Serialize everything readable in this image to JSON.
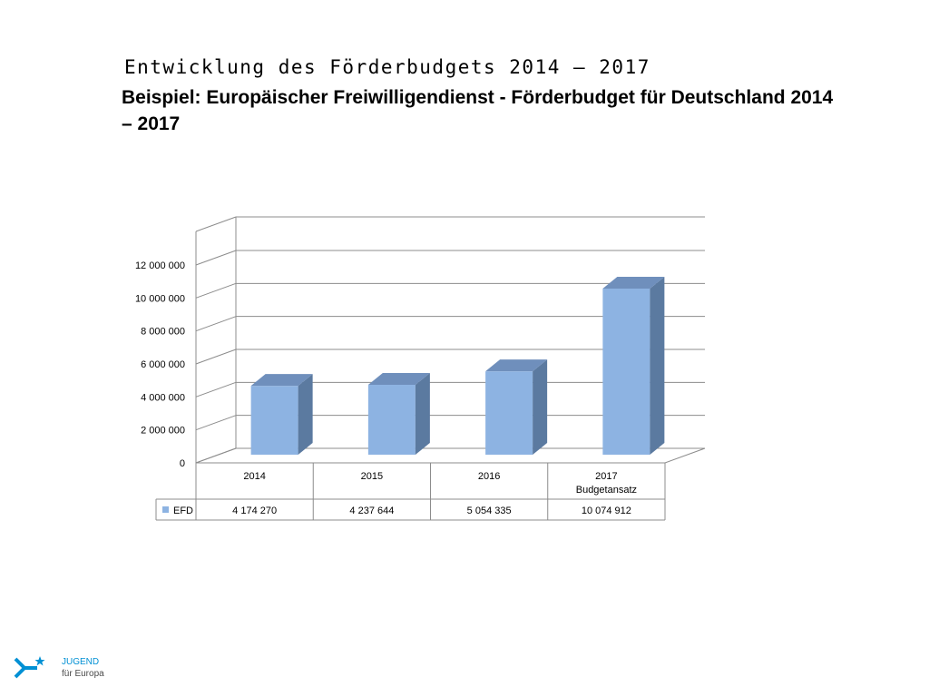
{
  "slide": {
    "title": "Entwicklung des Förderbudgets 2014 – 2017",
    "subtitle": "Beispiel: Europäischer Freiwilligendienst - Förderbudget für Deutschland 2014 – 2017"
  },
  "chart_data": {
    "type": "bar",
    "style": "3d-column",
    "categories": [
      "2014",
      "2015",
      "2016",
      "2017\nBudgetansatz"
    ],
    "series": [
      {
        "name": "EFD",
        "values": [
          4174270,
          4237644,
          5054335,
          10074912
        ],
        "labels": [
          "4 174 270",
          "4 237 644",
          "5 054 335",
          "10 074 912"
        ],
        "color": "#8db3e2"
      }
    ],
    "yticks": [
      "0",
      "2 000 000",
      "4 000 000",
      "6 000 000",
      "8 000 000",
      "10 000 000",
      "12 000 000"
    ],
    "ylim": [
      0,
      12000000
    ],
    "grid": true,
    "data_table": true,
    "legend": "in-data-table"
  },
  "footer": {
    "logo_line1": "JUGEND",
    "logo_line2": "für Europa",
    "logo_color": "#0090d4"
  }
}
